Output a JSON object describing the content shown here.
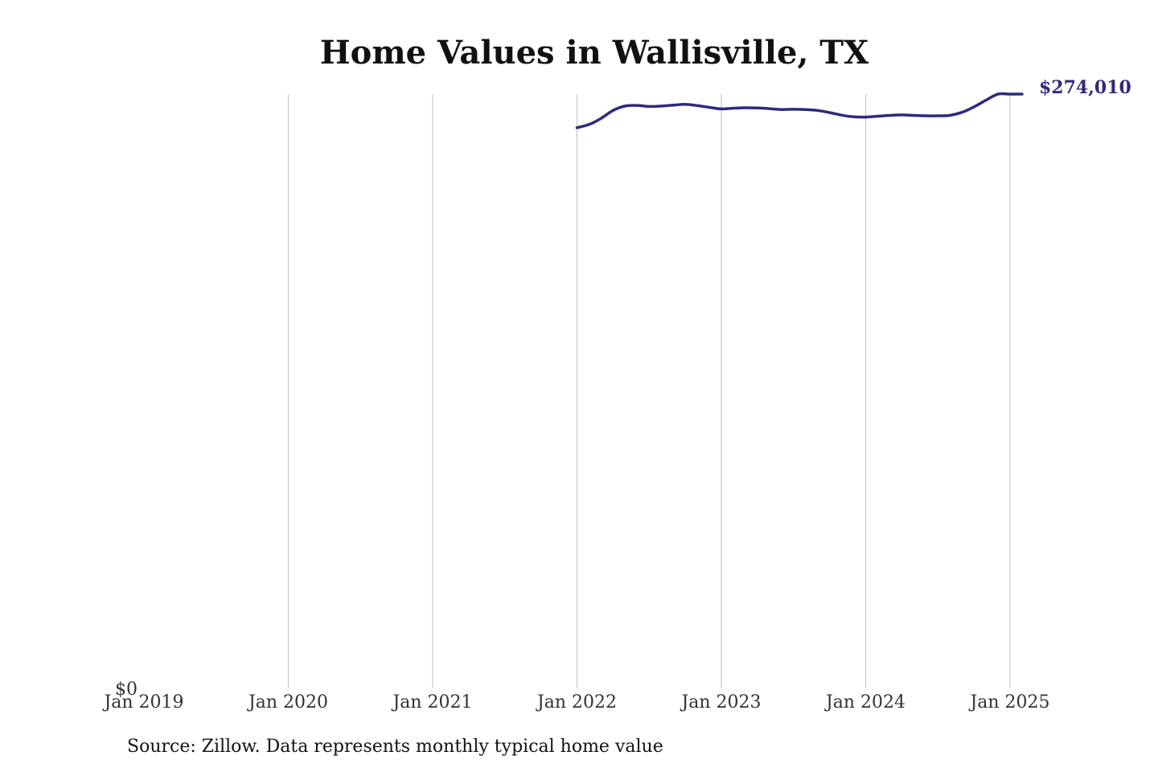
{
  "chart_data": {
    "type": "line",
    "title": "Home Values in Wallisville, TX",
    "xlabel": "",
    "ylabel": "",
    "x_ticks": [
      "Jan 2019",
      "Jan 2020",
      "Jan 2021",
      "Jan 2022",
      "Jan 2023",
      "Jan 2024",
      "Jan 2025"
    ],
    "y_ticks": [
      "$0"
    ],
    "ylim": [
      0,
      274010
    ],
    "xlim": [
      "2019-01",
      "2025-02"
    ],
    "grid": "vertical",
    "line_color": "#2e2a7d",
    "series": [
      {
        "x": [
          "2022-01",
          "2022-02",
          "2022-03",
          "2022-04",
          "2022-05",
          "2022-06",
          "2022-07",
          "2022-08",
          "2022-09",
          "2022-10",
          "2022-11",
          "2022-12",
          "2023-01",
          "2023-02",
          "2023-03",
          "2023-04",
          "2023-05",
          "2023-06",
          "2023-07",
          "2023-08",
          "2023-09",
          "2023-10",
          "2023-11",
          "2023-12",
          "2024-01",
          "2024-02",
          "2024-03",
          "2024-04",
          "2024-05",
          "2024-06",
          "2024-07",
          "2024-08",
          "2024-09",
          "2024-10",
          "2024-11",
          "2024-12",
          "2025-01",
          "2025-02"
        ],
        "values": [
          258500,
          260000,
          262800,
          266500,
          268500,
          268800,
          268300,
          268500,
          268900,
          269300,
          268700,
          267900,
          267200,
          267500,
          267700,
          267600,
          267300,
          266900,
          267000,
          266900,
          266500,
          265500,
          264300,
          263500,
          263400,
          263800,
          264200,
          264400,
          264200,
          264000,
          264000,
          264200,
          265600,
          268100,
          271200,
          274010,
          274010,
          274010
        ]
      }
    ],
    "end_label": "$274,010"
  },
  "footer": {
    "source": "Source: Zillow. Data represents monthly typical home value"
  }
}
